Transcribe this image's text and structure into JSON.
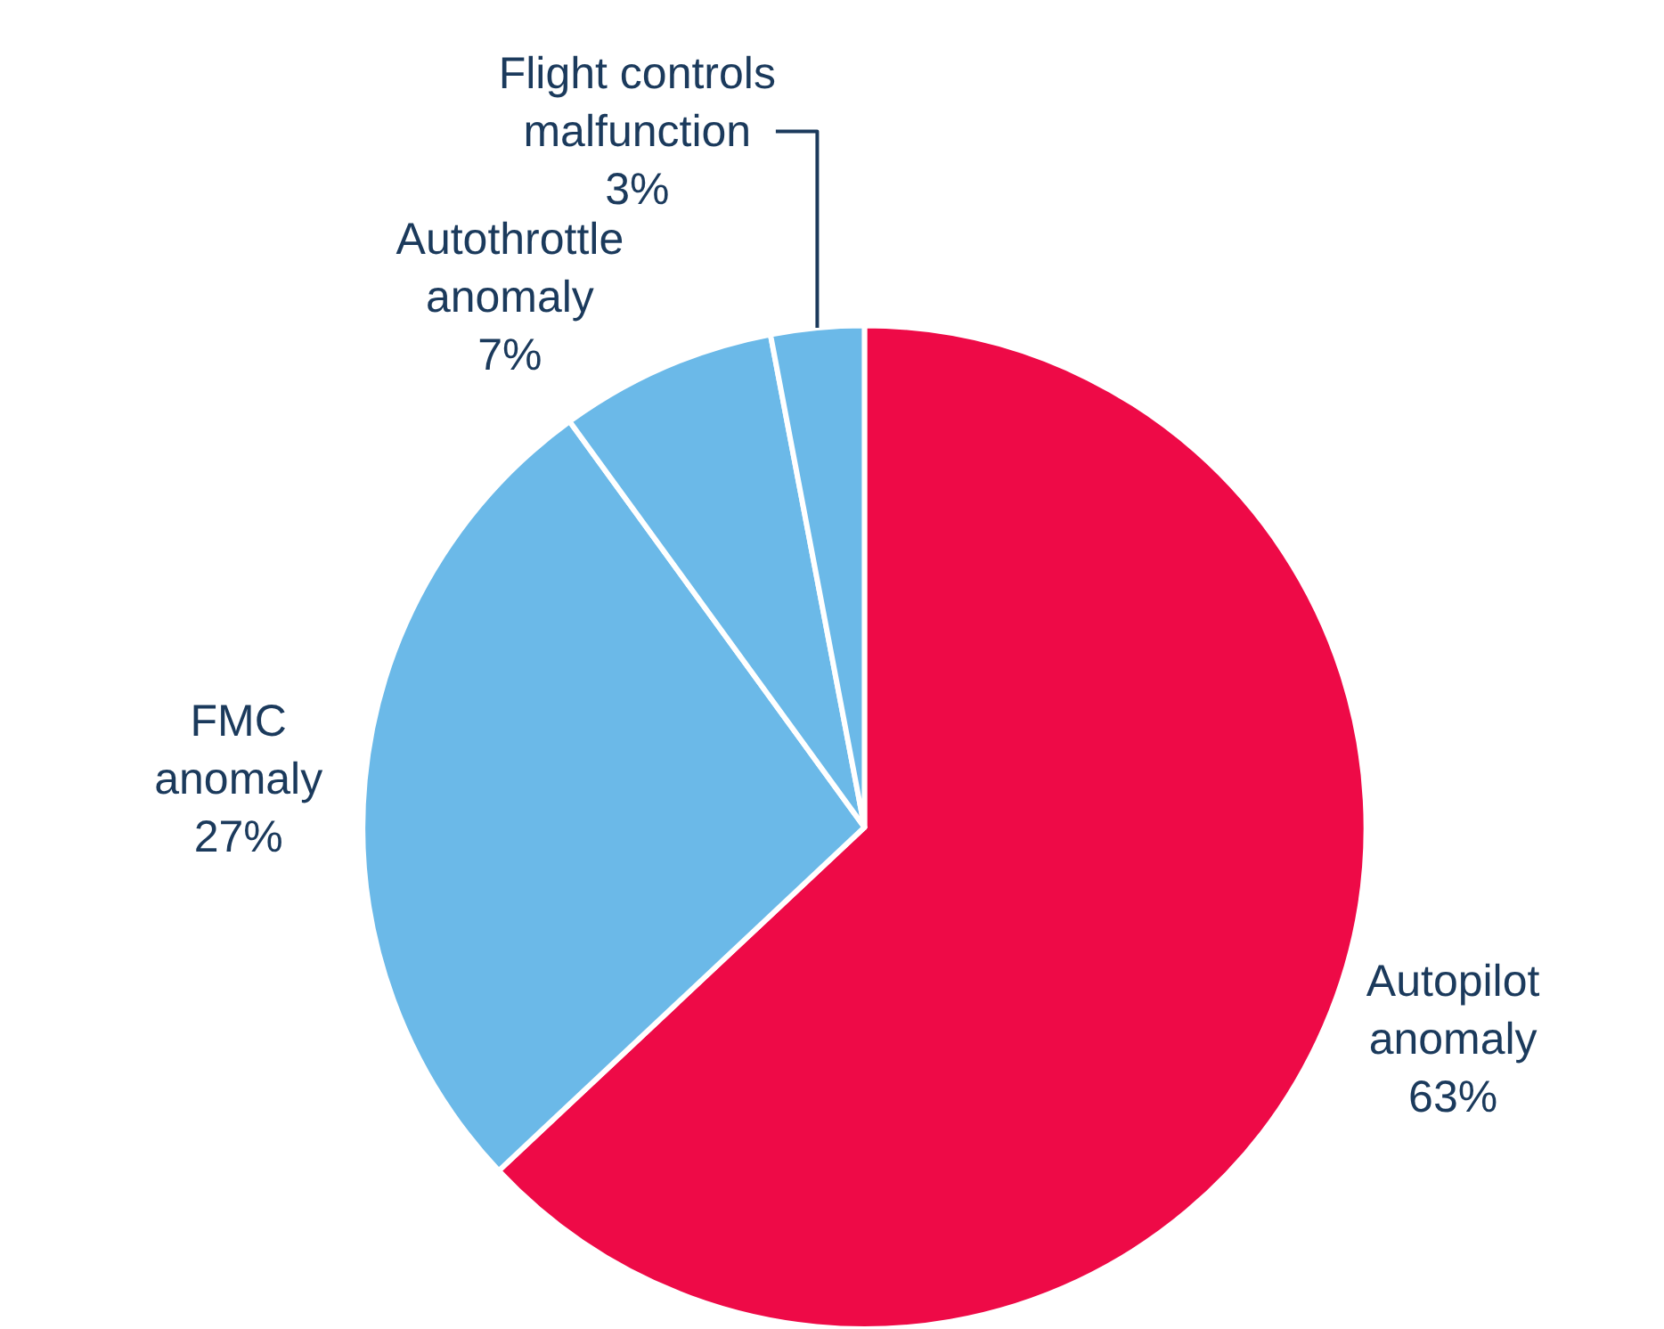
{
  "chart_data": {
    "type": "pie",
    "categories": [
      "Autopilot anomaly",
      "FMC anomaly",
      "Autothrottle anomaly",
      "Flight controls malfunction"
    ],
    "values": [
      63,
      27,
      7,
      3
    ],
    "value_labels": [
      "63%",
      "27%",
      "7%",
      "3%"
    ],
    "colors": [
      "#ee0a47",
      "#6bb9e8",
      "#6bb9e8",
      "#6bb9e8"
    ],
    "legend": false
  }
}
